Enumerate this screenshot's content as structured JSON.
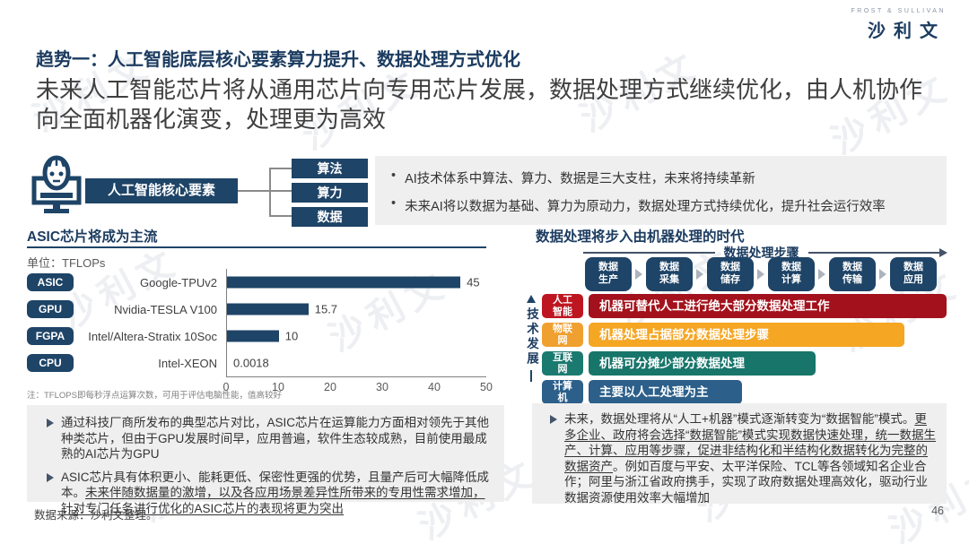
{
  "watermark": {
    "text": "沙利文"
  },
  "logo": {
    "tagline": "FROST & SULLIVAN",
    "name": "沙利文"
  },
  "header": {
    "title": "趋势一：人工智能底层核心要素算力提升、数据处理方式优化",
    "subtitle": "未来人工智能芯片将从通用芯片向专用芯片发展，数据处理方式继续优化，由人机协作向全面机器化演变，处理更为高效"
  },
  "core": {
    "label": "人工智能核心要素",
    "elements": [
      "算法",
      "算力",
      "数据"
    ],
    "bullet_glyph": "•",
    "bullets": [
      "AI技术体系中算法、算力、数据是三大支柱，未来将持续革新",
      "未来AI将以数据为基础、算力为原动力，数据处理方式持续优化，提升社会运行效率"
    ]
  },
  "chart": {
    "title": "ASIC芯片将成为主流",
    "unit_label": "单位：TFLOPs",
    "note": "注：TFLOPS即每秒浮点运算次数，可用于评估电脑性能，值高较好"
  },
  "chart_data": {
    "type": "bar",
    "orientation": "horizontal",
    "title": "ASIC芯片将成为主流",
    "unit": "TFLOPs",
    "chip_types": [
      "ASIC",
      "GPU",
      "FGPA",
      "CPU"
    ],
    "categories": [
      "Google-TPUv2",
      "Nvidia-TESLA V100",
      "Intel/Altera-Stratix 10Soc",
      "Intel-XEON"
    ],
    "values": [
      45,
      15.7,
      10,
      0.0018
    ],
    "value_labels": [
      "45",
      "15.7",
      "10",
      "0.0018"
    ],
    "xlim": [
      0,
      50
    ],
    "xticks": [
      "0",
      "10",
      "20",
      "30",
      "40",
      "50"
    ],
    "bar_color": "#1e4467",
    "grid": false,
    "legend": false
  },
  "process": {
    "title": "数据处理将步入由机器处理的时代",
    "axis_label": "数据处理步骤",
    "steps": [
      "数据生产",
      "数据采集",
      "数据储存",
      "数据计算",
      "数据传输",
      "数据应用"
    ],
    "tech_axis_label": "技术发展",
    "rows": [
      {
        "tag": "人工智能",
        "text": "机器可替代人工进行绝大部分数据处理工作",
        "tag_color": "#be1621",
        "bar_color": "#a3121c",
        "coverage_pct": 100
      },
      {
        "tag": "物联网",
        "text": "机器处理占据部分数据处理步骤",
        "tag_color": "#f0a02f",
        "bar_color": "#f5a623",
        "coverage_pct": 78
      },
      {
        "tag": "互联网",
        "text": "机器可分摊少部分数据处理",
        "tag_color": "#1b7a70",
        "bar_color": "#17756a",
        "coverage_pct": 56
      },
      {
        "tag": "计算机",
        "text": "主要以人工处理为主",
        "tag_color": "#2c5f8a",
        "bar_color": "#2c5f8a",
        "coverage_pct": 38
      }
    ]
  },
  "insights_left": [
    {
      "text": "通过科技厂商所发布的典型芯片对比，ASIC芯片在运算能力方面相对领先于其他种类芯片，但由于GPU发展时间早，应用普遍，软件生态较成熟，目前使用最成熟的AI芯片为GPU",
      "underline": ""
    },
    {
      "text": "ASIC芯片具有体积更小、能耗更低、保密性更强的优势，且量产后可大幅降低成本。",
      "underline": "未来伴随数据量的激增，以及各应用场景差异性所带来的专用性需求增加，针对专门任务进行优化的ASIC芯片的表现将更为突出"
    }
  ],
  "insights_right": {
    "lead": "未来，数据处理将从“人工+机器”模式逐渐转变为“数据智能”模式。",
    "underline": "更多企业、政府将会选择“数据智能”模式实现数据快速处理，统一数据生产、计算、应用等步骤，促进非结构化和半结构化数据转化为完整的数据资产",
    "tail": "。例如百度与平安、太平洋保险、TCL等各领域知名企业合作；阿里与浙江省政府携手，实现了政府数据处理高效化，驱动行业数据资源使用效率大幅增加"
  },
  "footer": {
    "source": "数据来源：沙利文整理。",
    "page": "46"
  }
}
